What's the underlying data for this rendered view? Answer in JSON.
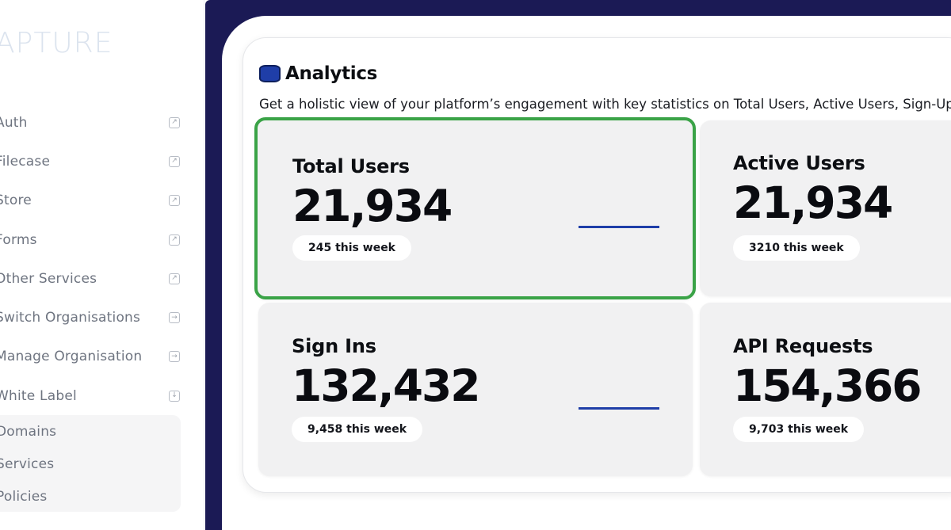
{
  "sidebar": {
    "brand": "APTURE",
    "items": [
      {
        "label": "Auth",
        "icon": "external-link-icon"
      },
      {
        "label": "Filecase",
        "icon": "external-link-icon"
      },
      {
        "label": "Store",
        "icon": "external-link-icon"
      },
      {
        "label": "Forms",
        "icon": "external-link-icon"
      },
      {
        "label": "Other Services",
        "icon": "external-link-icon"
      },
      {
        "label": "Switch Organisations",
        "icon": "arrow-right-icon"
      },
      {
        "label": "Manage Organisation",
        "icon": "arrow-right-icon"
      },
      {
        "label": "White Label",
        "icon": "chevron-down-icon"
      }
    ],
    "submenu": [
      "Domains",
      "Services",
      "Policies"
    ]
  },
  "analytics": {
    "title": "Analytics",
    "description": "Get a holistic view of your platform’s engagement with key statistics on Total Users, Active Users, Sign-Up"
  },
  "cards": [
    {
      "title": "Total Users",
      "value": "21,934",
      "badge": "245 this week"
    },
    {
      "title": "Active Users",
      "value": "21,934",
      "badge": "3210 this week"
    },
    {
      "title": "Sign Ins",
      "value": "132,432",
      "badge": "9,458 this week"
    },
    {
      "title": "API Requests",
      "value": "154,366",
      "badge": "9,703 this week"
    }
  ],
  "colors": {
    "accent": "#1f3ea8",
    "selected_border": "#3aa347",
    "dark_background": "#1b1a55"
  }
}
